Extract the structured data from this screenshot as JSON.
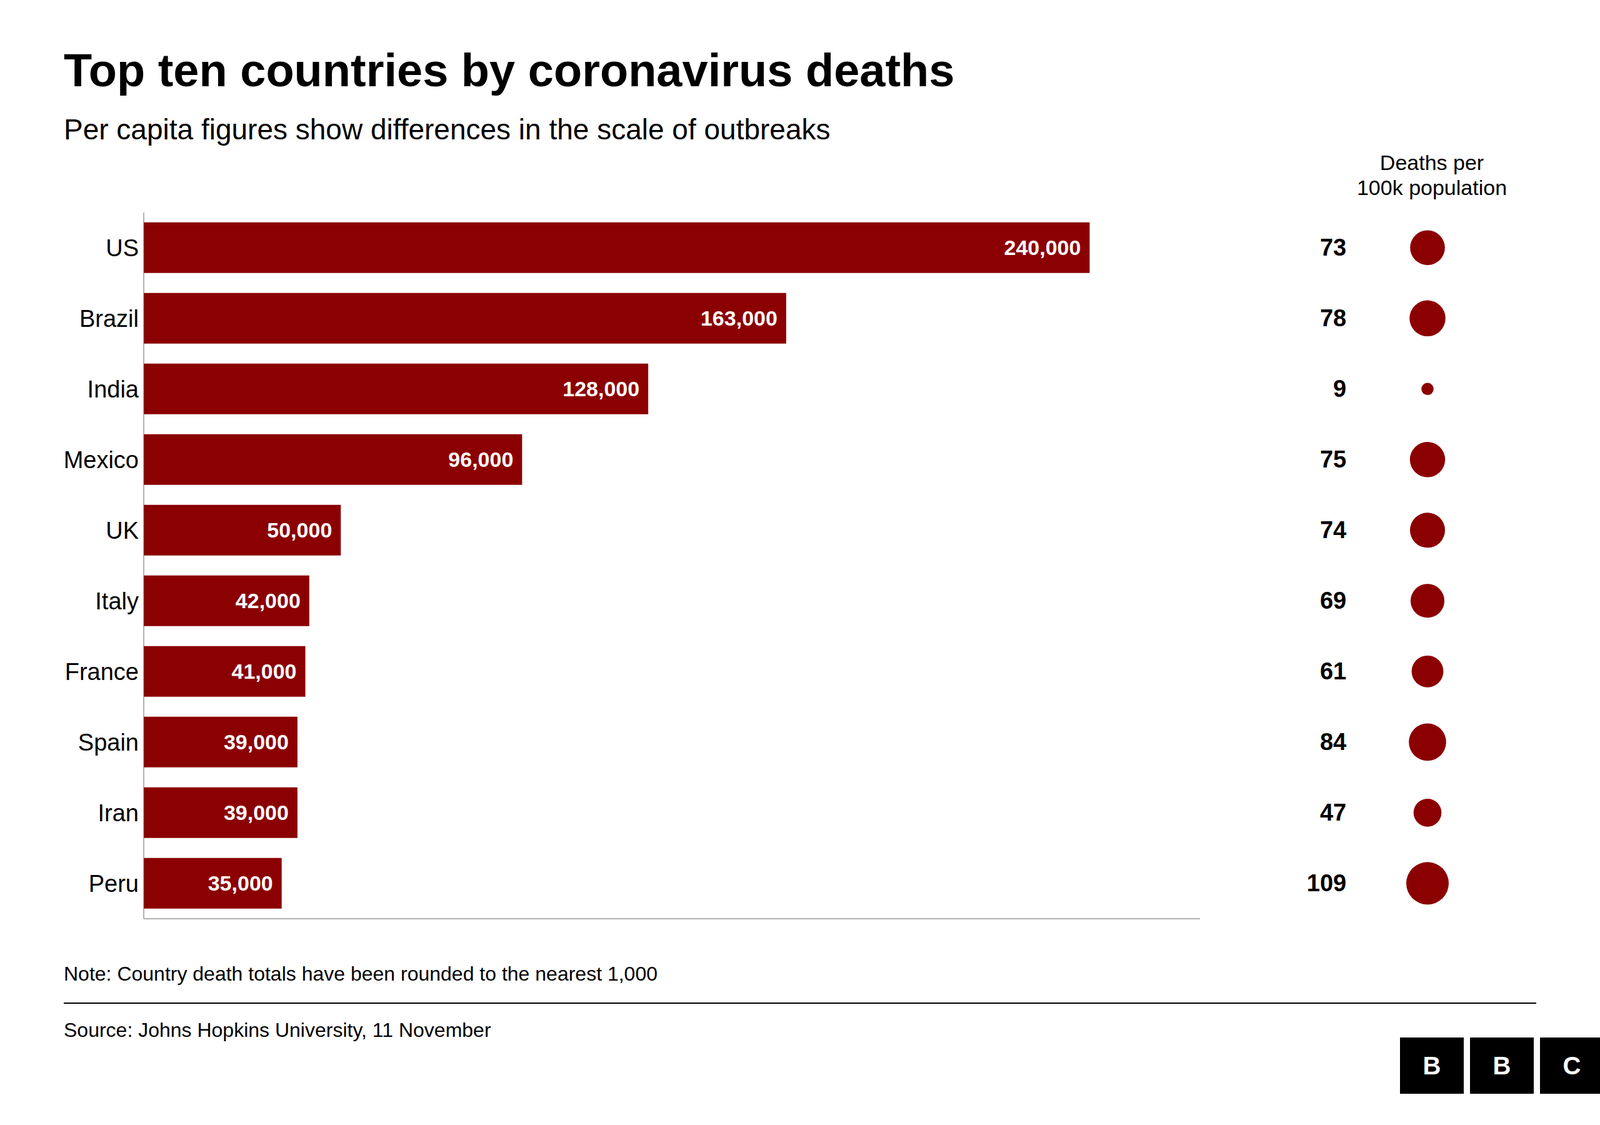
{
  "chart_data": {
    "type": "bar",
    "orientation": "horizontal",
    "title": "Top ten countries by coronavirus deaths",
    "subtitle": "Per capita figures show differences in the scale of outbreaks",
    "categories": [
      "US",
      "Brazil",
      "India",
      "Mexico",
      "UK",
      "Italy",
      "France",
      "Spain",
      "Iran",
      "Peru"
    ],
    "values": [
      240000,
      163000,
      128000,
      96000,
      50000,
      42000,
      41000,
      39000,
      39000,
      35000
    ],
    "value_labels": [
      "240,000",
      "163,000",
      "128,000",
      "96,000",
      "50,000",
      "42,000",
      "41,000",
      "39,000",
      "39,000",
      "35,000"
    ],
    "data_labels": true,
    "color": "#8B0000",
    "xlim": [
      0,
      268000
    ],
    "tick_labels": "y",
    "grid": false,
    "per_capita": {
      "title": "Deaths per\n100k population",
      "values": [
        73,
        78,
        9,
        75,
        74,
        69,
        61,
        84,
        47,
        109
      ],
      "color": "#8B0000",
      "data_labels": true
    },
    "note": "Note: Country death totals have been rounded to the nearest 1,000",
    "source": "Source: Johns Hopkins University, 11 November",
    "logo": "BBC"
  }
}
